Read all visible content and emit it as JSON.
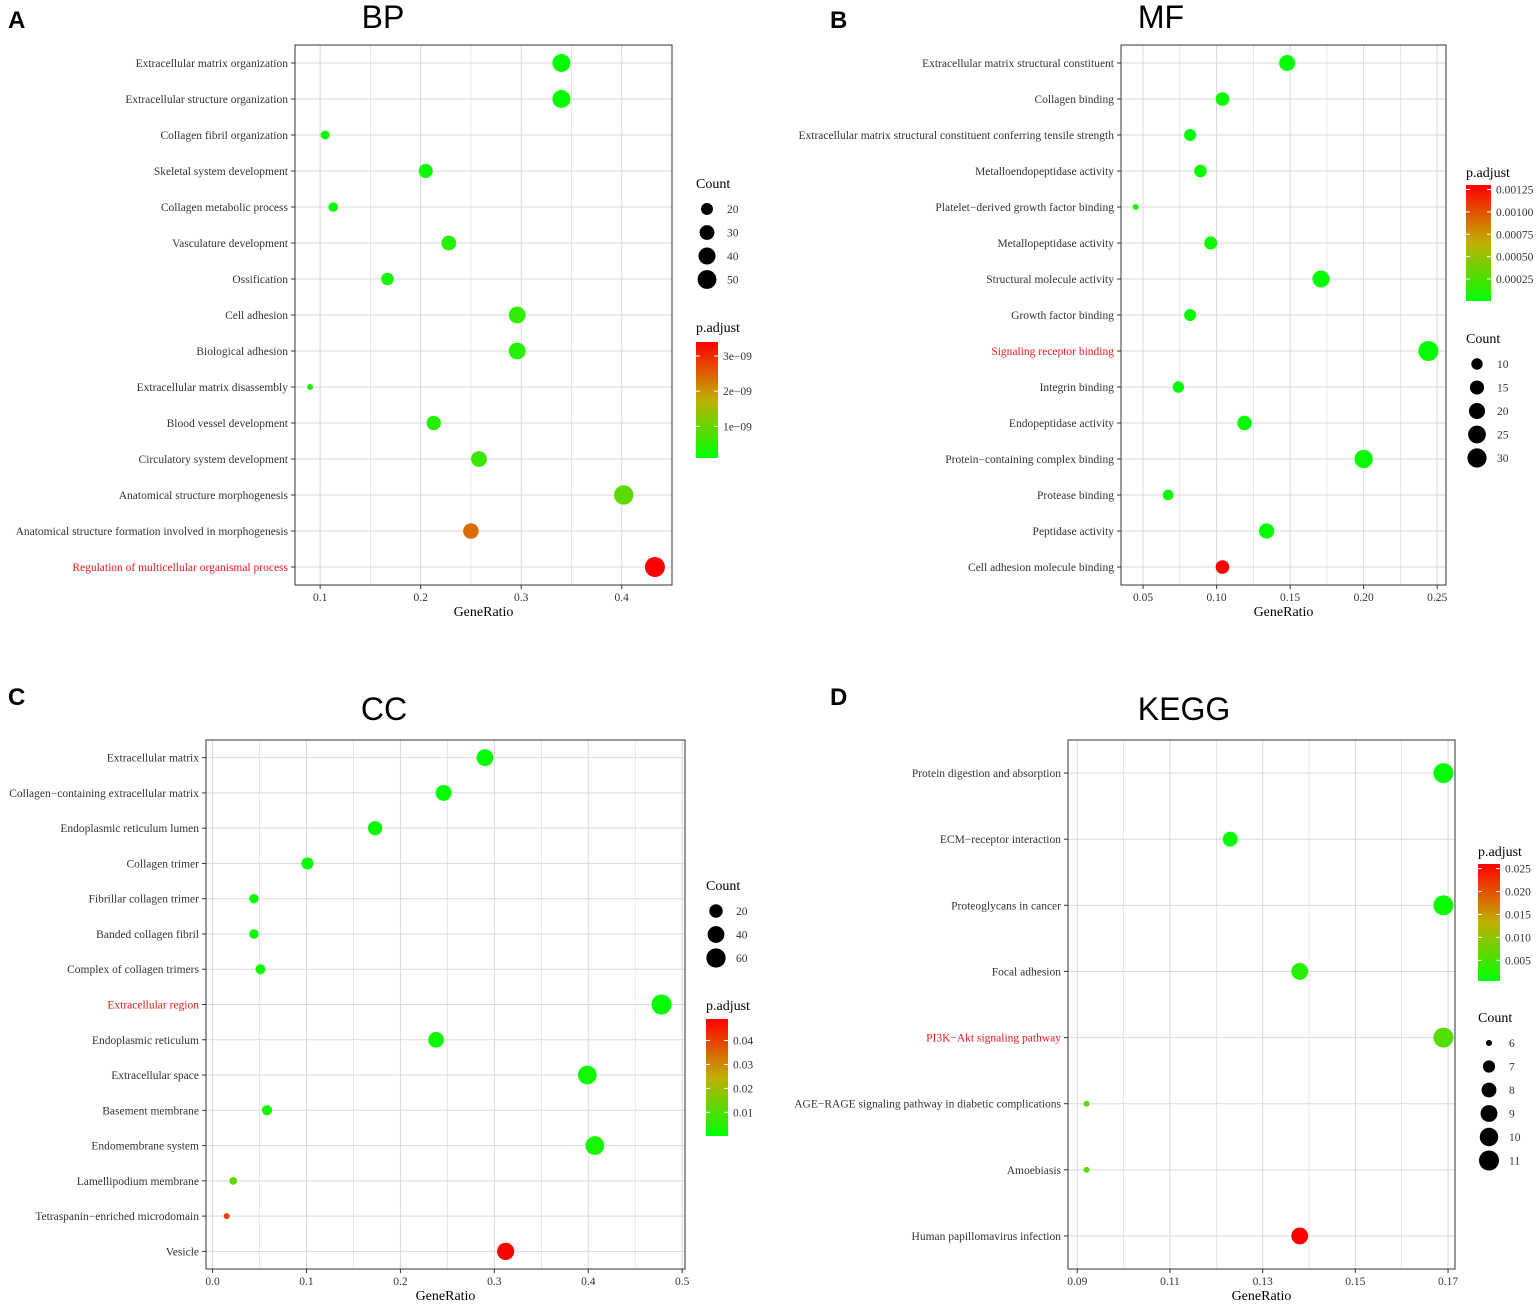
{
  "chart_data": [
    {
      "type": "scatter",
      "panel_label": "A",
      "title": "BP",
      "xlabel": "GeneRatio",
      "x_ticks": [
        0.1,
        0.2,
        0.3,
        0.4
      ],
      "x_tick_labels": [
        "0.1",
        "0.2",
        "0.3",
        "0.4"
      ],
      "xlim": [
        0.075,
        0.45
      ],
      "categories": [
        "Extracellular matrix organization",
        "Extracellular structure organization",
        "Collagen fibril organization",
        "Skeletal system development",
        "Collagen metabolic process",
        "Vasculature development",
        "Ossification",
        "Cell adhesion",
        "Biological adhesion",
        "Extracellular matrix disassembly",
        "Blood vessel development",
        "Circulatory system development",
        "Anatomical structure morphogenesis",
        "Anatomical structure formation involved in morphogenesis",
        "Regulation of multicellular organismal process"
      ],
      "highlight": [
        "Regulation of multicellular organismal process"
      ],
      "highlight_color": "#e8191c",
      "gene_ratio": [
        0.34,
        0.34,
        0.105,
        0.205,
        0.113,
        0.228,
        0.167,
        0.296,
        0.296,
        0.09,
        0.213,
        0.258,
        0.402,
        0.25,
        0.433
      ],
      "count": [
        45,
        45,
        14,
        27,
        15,
        30,
        22,
        39,
        39,
        12,
        28,
        34,
        53,
        33,
        57
      ],
      "p_adjust": [
        1e-10,
        1e-10,
        2e-10,
        1.5e-10,
        2e-10,
        4e-10,
        3e-10,
        5e-10,
        4e-10,
        3e-10,
        4e-10,
        6e-10,
        9e-10,
        2.4e-09,
        3.4e-09
      ],
      "count_legend": {
        "title": "Count",
        "values": [
          20,
          30,
          40,
          50
        ],
        "labels": [
          "20",
          "30",
          "40",
          "50"
        ]
      },
      "padj_legend": {
        "title": "p.adjust",
        "min": 1e-10,
        "max": 3.4e-09,
        "ticks": [
          1e-09,
          2e-09,
          3e-09
        ],
        "labels": [
          "1e−09",
          "2e−09",
          "3e−09"
        ]
      },
      "legend_order": "count-first"
    },
    {
      "type": "scatter",
      "panel_label": "B",
      "title": "MF",
      "xlabel": "GeneRatio",
      "x_ticks": [
        0.05,
        0.1,
        0.15,
        0.2,
        0.25
      ],
      "x_tick_labels": [
        "0.05",
        "0.10",
        "0.15",
        "0.20",
        "0.25"
      ],
      "xlim": [
        0.035,
        0.256
      ],
      "categories": [
        "Extracellular matrix structural constituent",
        "Collagen binding",
        "Extracellular matrix structural constituent conferring tensile strength",
        "Metalloendopeptidase activity",
        "Platelet−derived growth factor binding",
        "Metallopeptidase activity",
        "Structural molecule activity",
        "Growth factor binding",
        "Signaling receptor binding",
        "Integrin binding",
        "Endopeptidase activity",
        "Protein−containing complex binding",
        "Protease binding",
        "Peptidase activity",
        "Cell adhesion molecule binding"
      ],
      "highlight": [
        "Signaling receptor binding"
      ],
      "highlight_color": "#e8191c",
      "gene_ratio": [
        0.148,
        0.104,
        0.082,
        0.089,
        0.045,
        0.096,
        0.171,
        0.082,
        0.244,
        0.074,
        0.119,
        0.2,
        0.067,
        0.134,
        0.104
      ],
      "count": [
        20,
        14,
        11,
        12,
        6,
        13,
        23,
        11,
        33,
        10,
        16,
        27,
        9,
        18,
        14
      ],
      "p_adjust": [
        5e-06,
        4e-05,
        1e-05,
        5e-05,
        8e-05,
        7e-05,
        5e-06,
        4e-05,
        1e-05,
        1e-05,
        1e-05,
        3e-05,
        6e-05,
        1e-05,
        0.0013
      ],
      "padj_legend": {
        "title": "p.adjust",
        "min": 5e-06,
        "max": 0.0013,
        "ticks": [
          0.00025,
          0.0005,
          0.00075,
          0.001,
          0.00125
        ],
        "labels": [
          "0.00025",
          "0.00050",
          "0.00075",
          "0.00100",
          "0.00125"
        ]
      },
      "count_legend": {
        "title": "Count",
        "values": [
          10,
          15,
          20,
          25,
          30
        ],
        "labels": [
          "10",
          "15",
          "20",
          "25",
          "30"
        ]
      },
      "legend_order": "padj-first"
    },
    {
      "type": "scatter",
      "panel_label": "C",
      "title": "CC",
      "xlabel": "GeneRatio",
      "x_ticks": [
        0.0,
        0.1,
        0.2,
        0.3,
        0.4,
        0.5
      ],
      "x_tick_labels": [
        "0.0",
        "0.1",
        "0.2",
        "0.3",
        "0.4",
        "0.5"
      ],
      "xlim": [
        -0.007,
        0.503
      ],
      "categories": [
        "Extracellular matrix",
        "Collagen−containing extracellular matrix",
        "Endoplasmic reticulum lumen",
        "Collagen trimer",
        "Fibrillar collagen trimer",
        "Banded collagen fibril",
        "Complex of collagen trimers",
        "Extracellular region",
        "Endoplasmic reticulum",
        "Extracellular space",
        "Basement membrane",
        "Endomembrane system",
        "Lamellipodium membrane",
        "Tetraspanin−enriched microdomain",
        "Vesicle"
      ],
      "highlight": [
        "Extracellular region"
      ],
      "highlight_color": "#e8191c",
      "gene_ratio": [
        0.29,
        0.246,
        0.173,
        0.101,
        0.044,
        0.044,
        0.051,
        0.478,
        0.238,
        0.399,
        0.058,
        0.407,
        0.022,
        0.015,
        0.312
      ],
      "count": [
        40,
        34,
        24,
        14,
        6,
        6,
        7,
        66,
        33,
        55,
        8,
        56,
        3,
        2,
        43
      ],
      "p_adjust": [
        0.0001,
        0.0002,
        0.0003,
        0.0005,
        0.0008,
        0.001,
        0.001,
        0.0003,
        0.002,
        0.002,
        0.003,
        0.003,
        0.012,
        0.04,
        0.049
      ],
      "count_legend": {
        "title": "Count",
        "values": [
          20,
          40,
          60
        ],
        "labels": [
          "20",
          "40",
          "60"
        ]
      },
      "padj_legend": {
        "title": "p.adjust",
        "min": 0.0001,
        "max": 0.049,
        "ticks": [
          0.01,
          0.02,
          0.03,
          0.04
        ],
        "labels": [
          "0.01",
          "0.02",
          "0.03",
          "0.04"
        ]
      },
      "legend_order": "count-first"
    },
    {
      "type": "scatter",
      "panel_label": "D",
      "title": "KEGG",
      "xlabel": "GeneRatio",
      "x_ticks": [
        0.09,
        0.11,
        0.13,
        0.15,
        0.17
      ],
      "x_tick_labels": [
        "0.09",
        "0.11",
        "0.13",
        "0.15",
        "0.17"
      ],
      "xlim": [
        0.088,
        0.1715
      ],
      "categories": [
        "Protein digestion and absorption",
        "ECM−receptor interaction",
        "Proteoglycans in cancer",
        "Focal adhesion",
        "PI3K−Akt signaling pathway",
        "AGE−RAGE signaling pathway in diabetic complications",
        "Amoebiasis",
        "Human papillomavirus infection"
      ],
      "highlight": [
        "PI3K−Akt signaling pathway"
      ],
      "highlight_color": "#e8191c",
      "gene_ratio": [
        0.169,
        0.123,
        0.169,
        0.138,
        0.169,
        0.092,
        0.092,
        0.138
      ],
      "count": [
        11,
        8,
        11,
        9,
        11,
        6,
        6,
        9
      ],
      "p_adjust": [
        0.0005,
        0.001,
        0.001,
        0.003,
        0.006,
        0.006,
        0.005,
        0.026
      ],
      "padj_legend": {
        "title": "p.adjust",
        "min": 0.0005,
        "max": 0.026,
        "ticks": [
          0.005,
          0.01,
          0.015,
          0.02,
          0.025
        ],
        "labels": [
          "0.005",
          "0.010",
          "0.015",
          "0.020",
          "0.025"
        ]
      },
      "count_legend": {
        "title": "Count",
        "values": [
          6,
          7,
          8,
          9,
          10,
          11
        ],
        "labels": [
          "6",
          "7",
          "8",
          "9",
          "10",
          "11"
        ]
      },
      "legend_order": "padj-first"
    }
  ],
  "colors": {
    "low": "#00ff00",
    "mid": "#c0b000",
    "high": "#ff0000",
    "grid": "#d9d9d9",
    "highlight_text": "#e8191c"
  }
}
